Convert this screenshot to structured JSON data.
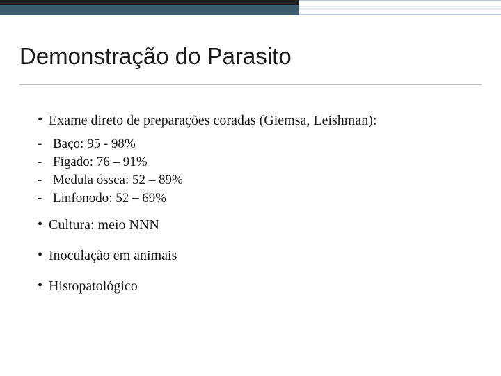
{
  "slide": {
    "title": "Demonstração do Parasito",
    "colors": {
      "accent_bar": "#3a5c6b",
      "accent_bar_top": "#1f1f1f",
      "rule": "#bfbfbf",
      "text": "#1a1a1a",
      "background": "#ffffff"
    },
    "typography": {
      "title_family": "Verdana",
      "title_size_pt": 25,
      "body_family": "Georgia",
      "body_size_pt": 15,
      "sub_size_pt": 14
    },
    "bullets": [
      {
        "text": "Exame direto de preparações coradas (Giemsa, Leishman):",
        "sub": [
          "Baço: 95 - 98%",
          "Fígado: 76 – 91%",
          "Medula óssea: 52 – 89%",
          "Linfonodo: 52 – 69%"
        ]
      },
      {
        "text": "Cultura:  meio NNN"
      },
      {
        "text": "Inoculação em animais"
      },
      {
        "text": "Histopatológico"
      }
    ]
  }
}
